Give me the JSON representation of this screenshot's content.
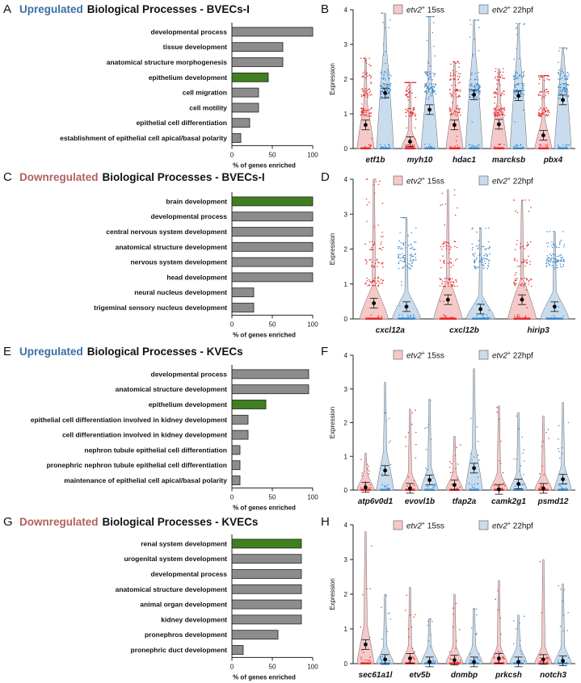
{
  "colors": {
    "bar_gray": "#8c8c8c",
    "bar_green": "#3f7f1f",
    "up_blue": "#3a6ea5",
    "down_red": "#b0615c",
    "pink_fill": "#f6c9c9",
    "pink_dots": "#e8262a",
    "blue_fill": "#c9dcee",
    "blue_dots": "#3a86c8"
  },
  "legend": {
    "a_italic": "etv2",
    "a_rest": " 15ss",
    "b_italic": "etv2",
    "b_rest": " 22hpf",
    "sup": "+"
  },
  "chart_data": [
    {
      "panel": "A",
      "type": "bar",
      "orientation": "horizontal",
      "title_prefix": "Upregulated",
      "title": "Biological Processes - BVECs-I",
      "categories": [
        "developmental process",
        "tissue development",
        "anatomical structure morphogenesis",
        "epithelium development",
        "cell migration",
        "cell motility",
        "epithelial cell differentiation",
        "establishment of epithelial cell apical/basal polarity"
      ],
      "values": [
        100,
        63,
        63,
        45,
        33,
        33,
        22,
        11
      ],
      "highlight": [
        3
      ],
      "xlim": [
        0,
        100
      ],
      "xticks": [
        "0",
        "50",
        "100"
      ],
      "xlabel": "% of genes enriched"
    },
    {
      "panel": "C",
      "type": "bar",
      "orientation": "horizontal",
      "title_prefix": "Downregulated",
      "title": "Biological Processes - BVECs-I",
      "categories": [
        "brain development",
        "developmental process",
        "central nervous system development",
        "anatomical structure development",
        "nervous system development",
        "head development",
        "neural nucleus development",
        "trigeminal sensory nucleus development"
      ],
      "values": [
        100,
        100,
        100,
        100,
        100,
        100,
        27,
        27
      ],
      "highlight": [
        0
      ],
      "xlim": [
        0,
        100
      ],
      "xticks": [
        "0",
        "50",
        "100"
      ],
      "xlabel": "% of genes enriched"
    },
    {
      "panel": "E",
      "type": "bar",
      "orientation": "horizontal",
      "title_prefix": "Upregulated",
      "title": "Biological Processes - KVECs",
      "categories": [
        "developmental process",
        "anatomical structure development",
        "epithelium development",
        "epithelial cell differentiation involved in kidney development",
        "cell differentiation involved in kidney development",
        "nephron tubule epithelial cell differentiation",
        "pronephric nephron tubule epithelial cell differentiation",
        "maintenance of epithelial cell apical/basal polarity"
      ],
      "values": [
        95,
        95,
        42,
        20,
        20,
        10,
        10,
        10
      ],
      "highlight": [
        2
      ],
      "xlim": [
        0,
        100
      ],
      "xticks": [
        "0",
        "50",
        "100"
      ],
      "xlabel": "% of genes enriched"
    },
    {
      "panel": "G",
      "type": "bar",
      "orientation": "horizontal",
      "title_prefix": "Downregulated",
      "title": "Biological Processes - KVECs",
      "categories": [
        "renal system development",
        "urogenital system development",
        "developmental process",
        "anatomical structure development",
        "animal organ development",
        "kidney development",
        "pronephros development",
        "pronephric duct development"
      ],
      "values": [
        86,
        86,
        86,
        86,
        86,
        86,
        57,
        14
      ],
      "highlight": [
        0
      ],
      "xlim": [
        0,
        100
      ],
      "xticks": [
        "0",
        "50",
        "100"
      ],
      "xlabel": "% of genes enriched"
    },
    {
      "panel": "B",
      "type": "violin",
      "ylabel": "Expression",
      "ylim": [
        0,
        4
      ],
      "yticks": [
        "0",
        "1",
        "2",
        "3",
        "4"
      ],
      "groups": [
        "etf1b",
        "myh10",
        "hdac1",
        "marcksb",
        "pbx4"
      ],
      "means": [
        [
          0.68,
          1.6
        ],
        [
          0.2,
          1.12
        ],
        [
          0.68,
          1.55
        ],
        [
          0.7,
          1.52
        ],
        [
          0.38,
          1.4
        ]
      ],
      "maxes": [
        [
          2.6,
          3.9
        ],
        [
          1.9,
          3.8
        ],
        [
          2.5,
          3.7
        ],
        [
          2.3,
          3.6
        ],
        [
          2.1,
          2.9
        ]
      ]
    },
    {
      "panel": "D",
      "type": "violin",
      "ylabel": "Expression",
      "ylim": [
        0,
        4
      ],
      "yticks": [
        "0",
        "1",
        "2",
        "3",
        "4"
      ],
      "groups": [
        "cxcl12a",
        "cxcl12b",
        "hirip3"
      ],
      "means": [
        [
          0.45,
          0.35
        ],
        [
          0.55,
          0.28
        ],
        [
          0.55,
          0.35
        ]
      ],
      "maxes": [
        [
          4.0,
          2.9
        ],
        [
          3.7,
          2.6
        ],
        [
          3.4,
          2.5
        ]
      ]
    },
    {
      "panel": "F",
      "type": "violin",
      "ylabel": "Expression",
      "ylim": [
        0,
        4
      ],
      "yticks": [
        "0",
        "1",
        "2",
        "3",
        "4"
      ],
      "groups": [
        "atp6v0d1",
        "evovl1b",
        "tfap2a",
        "camk2g1",
        "psmd12"
      ],
      "means": [
        [
          0.08,
          0.58
        ],
        [
          0.05,
          0.3
        ],
        [
          0.15,
          0.65
        ],
        [
          0.02,
          0.18
        ],
        [
          0.05,
          0.32
        ]
      ],
      "maxes": [
        [
          1.1,
          3.2
        ],
        [
          2.4,
          2.7
        ],
        [
          1.6,
          3.6
        ],
        [
          2.5,
          2.3
        ],
        [
          2.2,
          2.6
        ]
      ]
    },
    {
      "panel": "H",
      "type": "violin",
      "ylabel": "Expression",
      "ylim": [
        0,
        4
      ],
      "yticks": [
        "0",
        "1",
        "2",
        "3",
        "4"
      ],
      "groups": [
        "sec61a1l",
        "etv5b",
        "dnmbp",
        "prkcsh",
        "notch3"
      ],
      "means": [
        [
          0.55,
          0.12
        ],
        [
          0.15,
          0.05
        ],
        [
          0.1,
          0.05
        ],
        [
          0.15,
          0.05
        ],
        [
          0.12,
          0.08
        ]
      ],
      "maxes": [
        [
          3.8,
          2.0
        ],
        [
          2.2,
          1.3
        ],
        [
          2.0,
          1.6
        ],
        [
          2.4,
          1.4
        ],
        [
          3.0,
          2.3
        ]
      ]
    }
  ]
}
